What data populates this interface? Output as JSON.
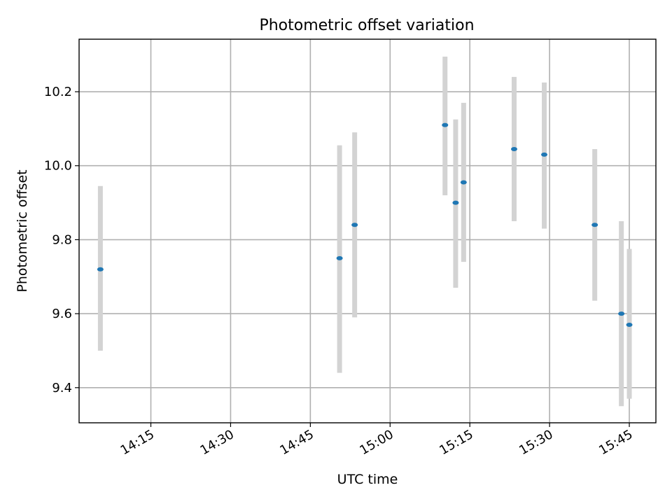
{
  "chart_data": {
    "type": "scatter",
    "title": "Photometric offset variation",
    "xlabel": "UTC time",
    "ylabel": "Photometric offset",
    "grid": true,
    "x_axis": {
      "kind": "time",
      "range": [
        "14:01:30",
        "15:50:00"
      ],
      "ticks": [
        "14:15",
        "14:30",
        "14:45",
        "15:00",
        "15:15",
        "15:30",
        "15:45"
      ]
    },
    "y_axis": {
      "range": [
        9.305,
        10.342
      ],
      "ticks": [
        9.4,
        9.6,
        9.8,
        10.0,
        10.2
      ]
    },
    "colors": {
      "marker": "#1f77b4",
      "errorbar": "#d3d3d3"
    },
    "series": [
      {
        "x": [
          "14:05:30",
          "14:50:30",
          "14:53:20",
          "15:10:20",
          "15:12:20",
          "15:13:50",
          "15:23:20",
          "15:29:00",
          "15:38:30",
          "15:43:30",
          "15:45:00"
        ],
        "y": [
          9.72,
          9.75,
          9.84,
          10.11,
          9.9,
          9.955,
          10.045,
          10.03,
          9.84,
          9.6,
          9.57
        ],
        "y_low": [
          9.5,
          9.44,
          9.59,
          9.92,
          9.67,
          9.74,
          9.85,
          9.83,
          9.635,
          9.35,
          9.37
        ],
        "y_high": [
          9.945,
          10.055,
          10.09,
          10.295,
          10.125,
          10.17,
          10.24,
          10.225,
          10.045,
          9.85,
          9.775
        ]
      }
    ]
  }
}
